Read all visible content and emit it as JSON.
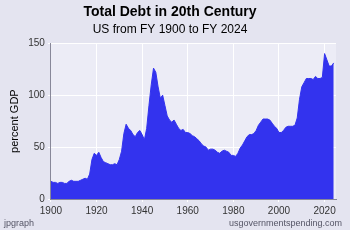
{
  "chart_data": {
    "type": "area",
    "title": "Total Debt in 20th Century",
    "subtitle": "US from FY 1900 to FY 2024",
    "y_label": "percent GDP",
    "annotations": [
      "jpgraph",
      "usgovernmentspending.com"
    ],
    "x": [
      1900,
      1901,
      1902,
      1903,
      1904,
      1905,
      1906,
      1907,
      1908,
      1909,
      1910,
      1911,
      1912,
      1913,
      1914,
      1915,
      1916,
      1917,
      1918,
      1919,
      1920,
      1921,
      1922,
      1923,
      1924,
      1925,
      1926,
      1927,
      1928,
      1929,
      1930,
      1931,
      1932,
      1933,
      1934,
      1935,
      1936,
      1937,
      1938,
      1939,
      1940,
      1941,
      1942,
      1943,
      1944,
      1945,
      1946,
      1947,
      1948,
      1949,
      1950,
      1951,
      1952,
      1953,
      1954,
      1955,
      1956,
      1957,
      1958,
      1959,
      1960,
      1961,
      1962,
      1963,
      1964,
      1965,
      1966,
      1967,
      1968,
      1969,
      1970,
      1971,
      1972,
      1973,
      1974,
      1975,
      1976,
      1977,
      1978,
      1979,
      1980,
      1981,
      1982,
      1983,
      1984,
      1985,
      1986,
      1987,
      1988,
      1989,
      1990,
      1991,
      1992,
      1993,
      1994,
      1995,
      1996,
      1997,
      1998,
      1999,
      2000,
      2001,
      2002,
      2003,
      2004,
      2005,
      2006,
      2007,
      2008,
      2009,
      2010,
      2011,
      2012,
      2013,
      2014,
      2015,
      2016,
      2017,
      2018,
      2019,
      2020,
      2021,
      2022,
      2023,
      2024
    ],
    "values": [
      17,
      16,
      16,
      15,
      16,
      16,
      15,
      15,
      17,
      18,
      17,
      17,
      17,
      18,
      19,
      20,
      19,
      24,
      38,
      44,
      42,
      45,
      40,
      36,
      35,
      34,
      33,
      33,
      34,
      33,
      38,
      46,
      63,
      72,
      68,
      66,
      62,
      60,
      64,
      66,
      62,
      57,
      68,
      90,
      110,
      126,
      122,
      108,
      97,
      100,
      90,
      80,
      76,
      74,
      76,
      72,
      68,
      66,
      67,
      64,
      64,
      63,
      61,
      60,
      58,
      56,
      53,
      51,
      50,
      47,
      48,
      48,
      47,
      45,
      44,
      46,
      47,
      46,
      45,
      42,
      42,
      41,
      44,
      49,
      52,
      56,
      60,
      62,
      62,
      63,
      66,
      71,
      74,
      77,
      77,
      77,
      76,
      73,
      70,
      68,
      64,
      64,
      66,
      69,
      70,
      70,
      70,
      71,
      78,
      96,
      108,
      112,
      116,
      116,
      116,
      115,
      118,
      116,
      116,
      117,
      140,
      134,
      128,
      128,
      131
    ],
    "color": "#3333ee",
    "xlim": [
      1900,
      2025
    ],
    "xticks": [
      1900,
      1920,
      1940,
      1960,
      1980,
      2000,
      2020
    ],
    "ylim": [
      0,
      150
    ],
    "yticks": [
      0,
      50,
      100,
      150
    ],
    "grid": true
  }
}
